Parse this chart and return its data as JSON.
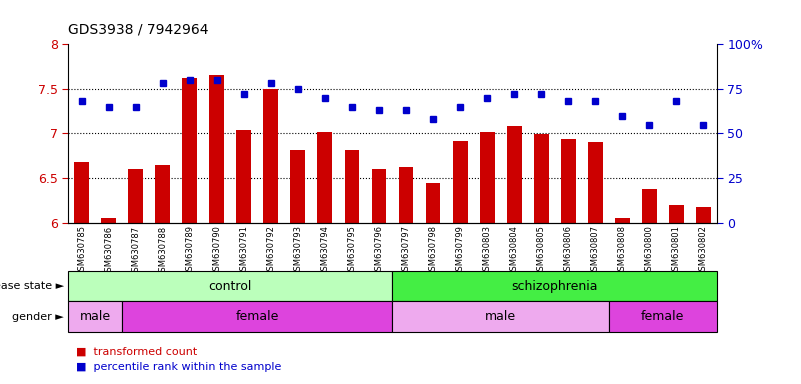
{
  "title": "GDS3938 / 7942964",
  "samples": [
    "GSM630785",
    "GSM630786",
    "GSM630787",
    "GSM630788",
    "GSM630789",
    "GSM630790",
    "GSM630791",
    "GSM630792",
    "GSM630793",
    "GSM630794",
    "GSM630795",
    "GSM630796",
    "GSM630797",
    "GSM630798",
    "GSM630799",
    "GSM630803",
    "GSM630804",
    "GSM630805",
    "GSM630806",
    "GSM630807",
    "GSM630808",
    "GSM630800",
    "GSM630801",
    "GSM630802"
  ],
  "bar_values": [
    6.68,
    6.05,
    6.6,
    6.65,
    7.62,
    7.65,
    7.04,
    7.5,
    6.82,
    7.02,
    6.82,
    6.6,
    6.62,
    6.45,
    6.92,
    7.02,
    7.08,
    6.99,
    6.94,
    6.9,
    6.05,
    6.38,
    6.2,
    6.18
  ],
  "dot_values": [
    68,
    65,
    65,
    78,
    80,
    80,
    72,
    78,
    75,
    70,
    65,
    63,
    63,
    58,
    65,
    70,
    72,
    72,
    68,
    68,
    60,
    55,
    68,
    55
  ],
  "ylim_left": [
    6.0,
    8.0
  ],
  "ylim_right": [
    0,
    100
  ],
  "yticks_left": [
    6.0,
    6.5,
    7.0,
    7.5,
    8.0
  ],
  "yticks_right": [
    0,
    25,
    50,
    75,
    100
  ],
  "bar_color": "#cc0000",
  "dot_color": "#0000cc",
  "disease_state_blocks": [
    {
      "label": "control",
      "start": 0,
      "end": 11,
      "color": "#bbffbb"
    },
    {
      "label": "schizophrenia",
      "start": 12,
      "end": 23,
      "color": "#44ee44"
    }
  ],
  "gender_blocks": [
    {
      "label": "male",
      "start": 0,
      "end": 1,
      "color": "#eeaaee"
    },
    {
      "label": "female",
      "start": 2,
      "end": 11,
      "color": "#dd44dd"
    },
    {
      "label": "male",
      "start": 12,
      "end": 19,
      "color": "#eeaaee"
    },
    {
      "label": "female",
      "start": 20,
      "end": 23,
      "color": "#dd44dd"
    }
  ],
  "legend_items": [
    {
      "label": "transformed count",
      "color": "#cc0000"
    },
    {
      "label": "percentile rank within the sample",
      "color": "#0000cc"
    }
  ],
  "label_disease_state": "disease state",
  "label_gender": "gender",
  "grid_yticks": [
    6.5,
    7.0,
    7.5
  ]
}
